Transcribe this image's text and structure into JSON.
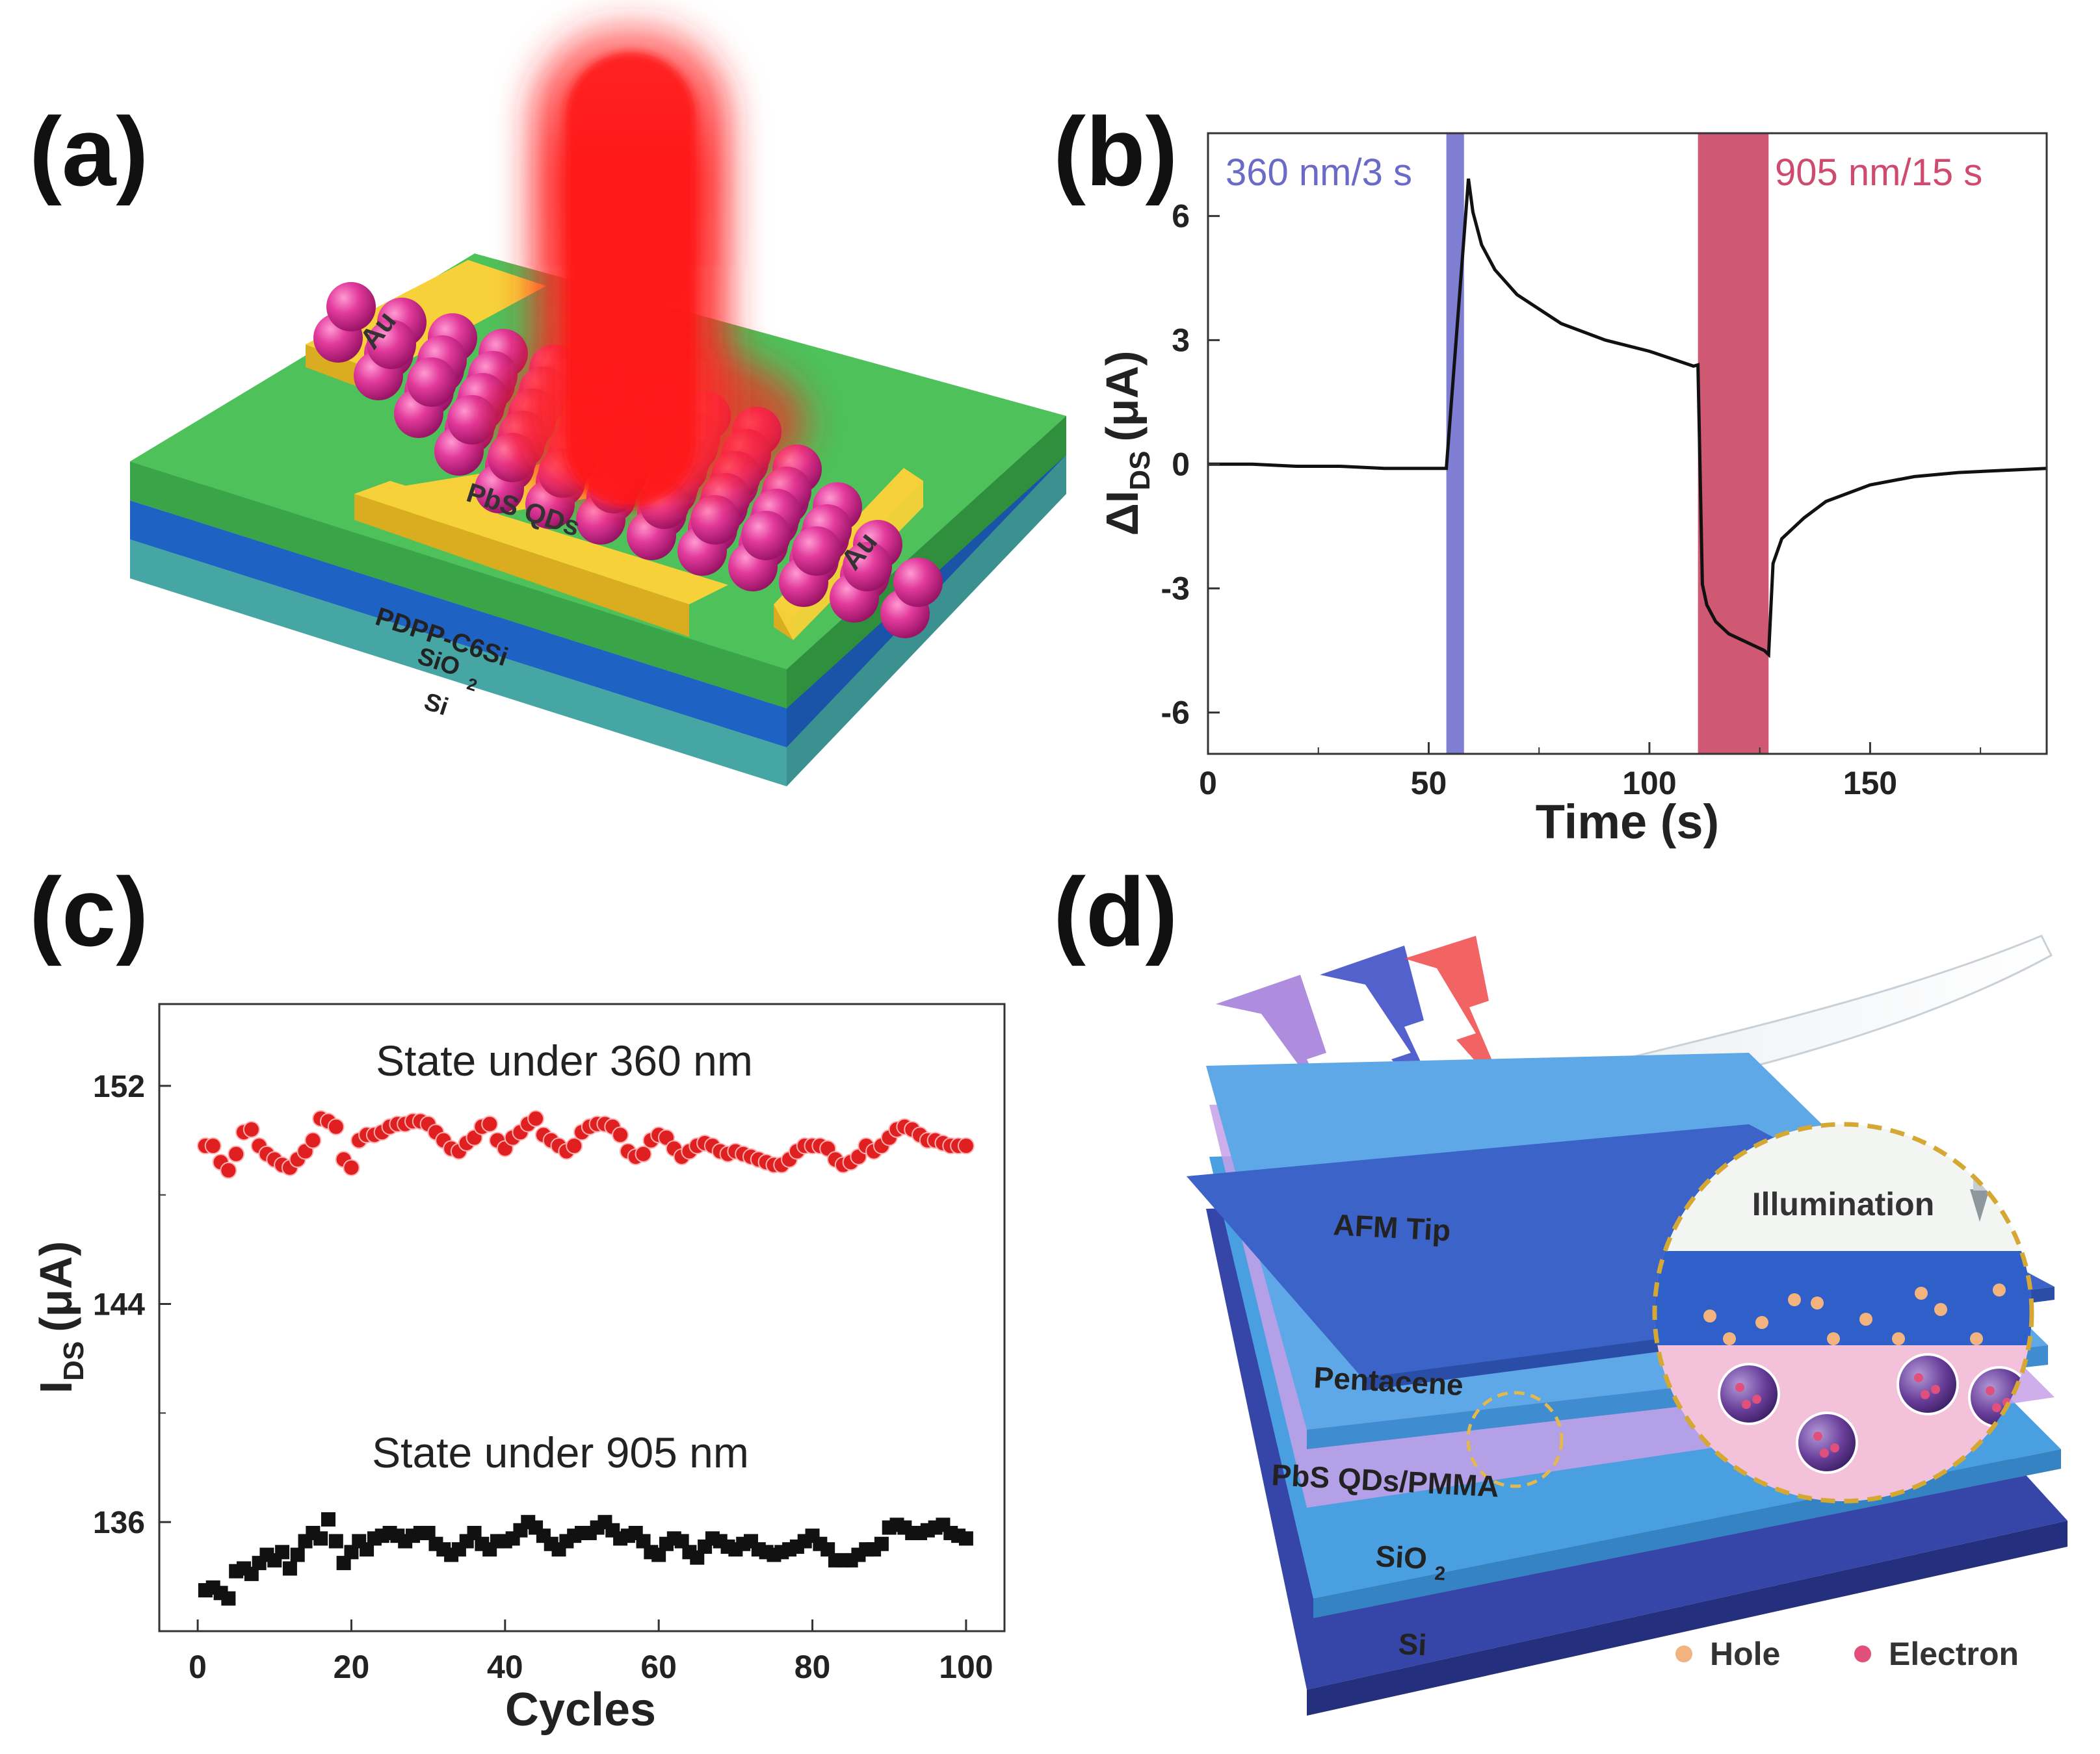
{
  "panels": {
    "a": {
      "label": "(a)",
      "layers": {
        "electrode": "Au",
        "qds": "PbS QDs",
        "semiconductor": "PDPP-C6Si",
        "dielectric": "SiO",
        "dielectric_sub": "2",
        "substrate": "Si"
      }
    },
    "b": {
      "label": "(b)",
      "pulse1_label": "360 nm/3 s",
      "pulse2_label": "905 nm/15 s",
      "colors": {
        "uv": "#7e7ed2",
        "nir": "#cf5873",
        "trace": "#111111"
      }
    },
    "c": {
      "label": "(c)",
      "label_360": "State under 360 nm",
      "label_905": "State under 905 nm",
      "colors": {
        "s360": "#e02020",
        "s905": "#111111"
      }
    },
    "d": {
      "label": "(d)",
      "layers": {
        "tip": "AFM Tip",
        "top": "Pentacene",
        "qds": "PbS QDs/PMMA",
        "dielectric": "SiO",
        "dielectric_sub": "2",
        "substrate": "Si"
      },
      "inset_title": "Illumination",
      "legend": {
        "hole": "Hole",
        "electron": "Electron"
      }
    }
  },
  "chart_data": [
    {
      "panel": "b",
      "type": "line",
      "xlabel": "Time (s)",
      "ylabel": "ΔI",
      "ylabel_sub": "DS",
      "ylabel_unit": "(μA)",
      "xlim": [
        0,
        190
      ],
      "ylim": [
        -7,
        8
      ],
      "xticks": [
        0,
        50,
        100,
        150
      ],
      "yticks": [
        -6,
        -3,
        0,
        3,
        6
      ],
      "shaded": [
        {
          "name": "360 nm/3 s",
          "x": [
            54,
            58
          ]
        },
        {
          "name": "905 nm/15 s",
          "x": [
            111,
            127
          ]
        }
      ],
      "series": [
        {
          "x": [
            0,
            10,
            20,
            30,
            40,
            50,
            54,
            58,
            59,
            60,
            62,
            65,
            70,
            80,
            90,
            100,
            110,
            111,
            112,
            113,
            115,
            118,
            122,
            126,
            127,
            128,
            130,
            135,
            140,
            150,
            160,
            170,
            180,
            190
          ],
          "values": [
            0,
            0,
            -0.05,
            -0.05,
            -0.1,
            -0.1,
            -0.1,
            5.5,
            6.9,
            6.1,
            5.3,
            4.7,
            4.1,
            3.4,
            3.0,
            2.7,
            2.4,
            2.4,
            -2.9,
            -3.4,
            -3.8,
            -4.1,
            -4.3,
            -4.5,
            -4.6,
            -2.4,
            -1.8,
            -1.3,
            -0.9,
            -0.5,
            -0.3,
            -0.2,
            -0.15,
            -0.1
          ]
        }
      ]
    },
    {
      "panel": "c",
      "type": "scatter",
      "xlabel": "Cycles",
      "ylabel": "I",
      "ylabel_sub": "DS",
      "ylabel_unit": "(μA)",
      "xlim": [
        -5,
        105
      ],
      "ylim": [
        132,
        155
      ],
      "xticks": [
        0,
        20,
        40,
        60,
        80,
        100
      ],
      "yticks": [
        136,
        144,
        152
      ],
      "series": [
        {
          "name": "State under 360 nm",
          "x": [
            1,
            2,
            3,
            4,
            5,
            6,
            7,
            8,
            9,
            10,
            11,
            12,
            13,
            14,
            15,
            16,
            17,
            18,
            19,
            20,
            21,
            22,
            23,
            24,
            25,
            26,
            27,
            28,
            29,
            30,
            31,
            32,
            33,
            34,
            35,
            36,
            37,
            38,
            39,
            40,
            41,
            42,
            43,
            44,
            45,
            46,
            47,
            48,
            49,
            50,
            51,
            52,
            53,
            54,
            55,
            56,
            57,
            58,
            59,
            60,
            61,
            62,
            63,
            64,
            65,
            66,
            67,
            68,
            69,
            70,
            71,
            72,
            73,
            74,
            75,
            76,
            77,
            78,
            79,
            80,
            81,
            82,
            83,
            84,
            85,
            86,
            87,
            88,
            89,
            90,
            91,
            92,
            93,
            94,
            95,
            96,
            97,
            98,
            99,
            100
          ],
          "values": [
            149.8,
            149.8,
            149.2,
            148.9,
            149.5,
            150.3,
            150.4,
            149.8,
            149.5,
            149.3,
            149.1,
            149.0,
            149.3,
            149.6,
            150.0,
            150.8,
            150.7,
            150.5,
            149.3,
            149.0,
            150.0,
            150.2,
            150.2,
            150.3,
            150.5,
            150.6,
            150.6,
            150.7,
            150.7,
            150.6,
            150.3,
            150.0,
            149.7,
            149.6,
            149.9,
            150.1,
            150.5,
            150.6,
            150.0,
            149.7,
            150.1,
            150.3,
            150.6,
            150.8,
            150.2,
            150.0,
            149.8,
            149.6,
            149.8,
            150.3,
            150.5,
            150.6,
            150.6,
            150.5,
            150.2,
            149.6,
            149.4,
            149.5,
            150.0,
            150.2,
            150.1,
            149.7,
            149.4,
            149.6,
            149.8,
            149.9,
            149.8,
            149.6,
            149.5,
            149.6,
            149.5,
            149.4,
            149.3,
            149.2,
            149.1,
            149.1,
            149.3,
            149.6,
            149.8,
            149.8,
            149.8,
            149.7,
            149.3,
            149.1,
            149.2,
            149.4,
            149.8,
            149.6,
            149.8,
            150.1,
            150.4,
            150.5,
            150.4,
            150.2,
            150.0,
            150.0,
            149.9,
            149.8,
            149.8,
            149.8
          ]
        },
        {
          "name": "State under 905 nm",
          "x": [
            1,
            2,
            3,
            4,
            5,
            6,
            7,
            8,
            9,
            10,
            11,
            12,
            13,
            14,
            15,
            16,
            17,
            18,
            19,
            20,
            21,
            22,
            23,
            24,
            25,
            26,
            27,
            28,
            29,
            30,
            31,
            32,
            33,
            34,
            35,
            36,
            37,
            38,
            39,
            40,
            41,
            42,
            43,
            44,
            45,
            46,
            47,
            48,
            49,
            50,
            51,
            52,
            53,
            54,
            55,
            56,
            57,
            58,
            59,
            60,
            61,
            62,
            63,
            64,
            65,
            66,
            67,
            68,
            69,
            70,
            71,
            72,
            73,
            74,
            75,
            76,
            77,
            78,
            79,
            80,
            81,
            82,
            83,
            84,
            85,
            86,
            87,
            88,
            89,
            90,
            91,
            92,
            93,
            94,
            95,
            96,
            97,
            98,
            99,
            100
          ],
          "values": [
            133.5,
            133.6,
            133.4,
            133.2,
            134.2,
            134.3,
            134.1,
            134.5,
            134.8,
            134.6,
            134.9,
            134.3,
            134.8,
            135.3,
            135.6,
            135.4,
            136.1,
            135.3,
            134.5,
            134.9,
            135.3,
            135.0,
            135.4,
            135.5,
            135.6,
            135.5,
            135.3,
            135.5,
            135.6,
            135.6,
            135.2,
            135.0,
            134.8,
            135.0,
            135.3,
            135.6,
            135.2,
            135.0,
            135.3,
            135.3,
            135.4,
            135.7,
            136.0,
            135.8,
            135.5,
            135.2,
            135.0,
            135.3,
            135.5,
            135.6,
            135.6,
            135.8,
            136.0,
            135.7,
            135.4,
            135.5,
            135.6,
            135.3,
            134.9,
            134.8,
            135.2,
            135.4,
            135.3,
            134.9,
            134.7,
            135.1,
            135.4,
            135.3,
            135.1,
            135.0,
            135.2,
            135.3,
            135.0,
            134.9,
            134.8,
            134.9,
            135.0,
            135.1,
            135.3,
            135.5,
            135.2,
            135.0,
            134.6,
            134.6,
            134.6,
            134.8,
            135.0,
            135.0,
            135.2,
            135.8,
            135.9,
            135.8,
            135.6,
            135.6,
            135.7,
            135.8,
            135.9,
            135.6,
            135.5,
            135.4
          ]
        }
      ]
    }
  ]
}
